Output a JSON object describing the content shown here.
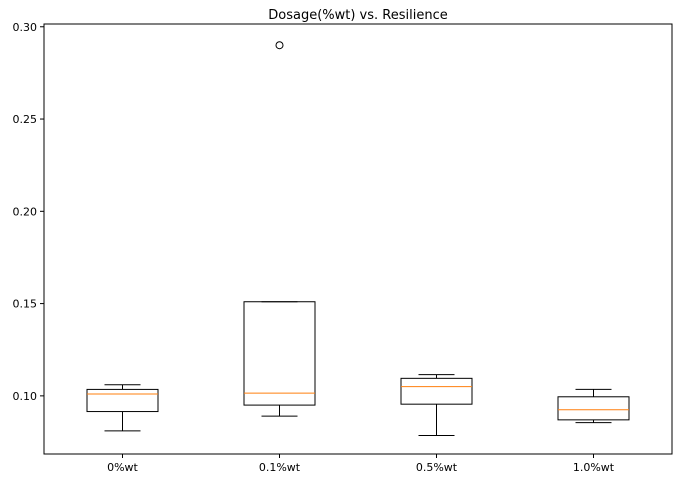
{
  "chart_data": {
    "type": "box",
    "title": "Dosage(%wt) vs. Resilience",
    "xlabel": "",
    "ylabel": "",
    "categories": [
      "0%wt",
      "0.1%wt",
      "0.5%wt",
      "1.0%wt"
    ],
    "yticks": [
      0.1,
      0.15,
      0.2,
      0.25,
      0.3
    ],
    "ytick_labels": [
      "0.10",
      "0.15",
      "0.20",
      "0.25",
      "0.30"
    ],
    "ylim": [
      0.0685,
      0.3015
    ],
    "boxes": [
      {
        "category": "0%wt",
        "whisker_low": 0.081,
        "q1": 0.0915,
        "median": 0.101,
        "q3": 0.1035,
        "whisker_high": 0.106,
        "outliers": []
      },
      {
        "category": "0.1%wt",
        "whisker_low": 0.089,
        "q1": 0.095,
        "median": 0.1015,
        "q3": 0.151,
        "whisker_high": 0.151,
        "outliers": [
          0.29
        ]
      },
      {
        "category": "0.5%wt",
        "whisker_low": 0.0785,
        "q1": 0.0955,
        "median": 0.105,
        "q3": 0.1095,
        "whisker_high": 0.1115,
        "outliers": []
      },
      {
        "category": "1.0%wt",
        "whisker_low": 0.0855,
        "q1": 0.087,
        "median": 0.0925,
        "q3": 0.0995,
        "whisker_high": 0.1035,
        "outliers": []
      }
    ],
    "colors": {
      "box": "#000000",
      "median": "#ff7f0e",
      "outlier": "#000000"
    },
    "grid": false
  }
}
